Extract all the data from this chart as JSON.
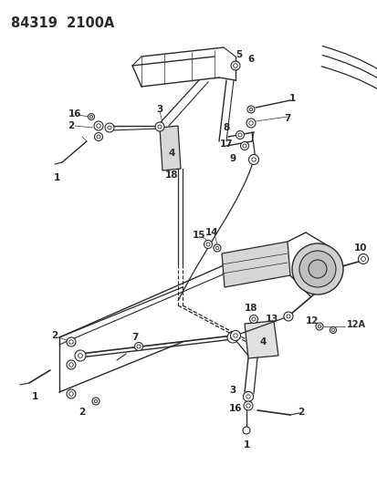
{
  "title": "84319  2100A",
  "bg_color": "#ffffff",
  "line_color": "#2a2a2a",
  "figsize": [
    4.14,
    5.33
  ],
  "dpi": 100,
  "title_fontsize": 10.5,
  "label_fontsize": 7.5
}
